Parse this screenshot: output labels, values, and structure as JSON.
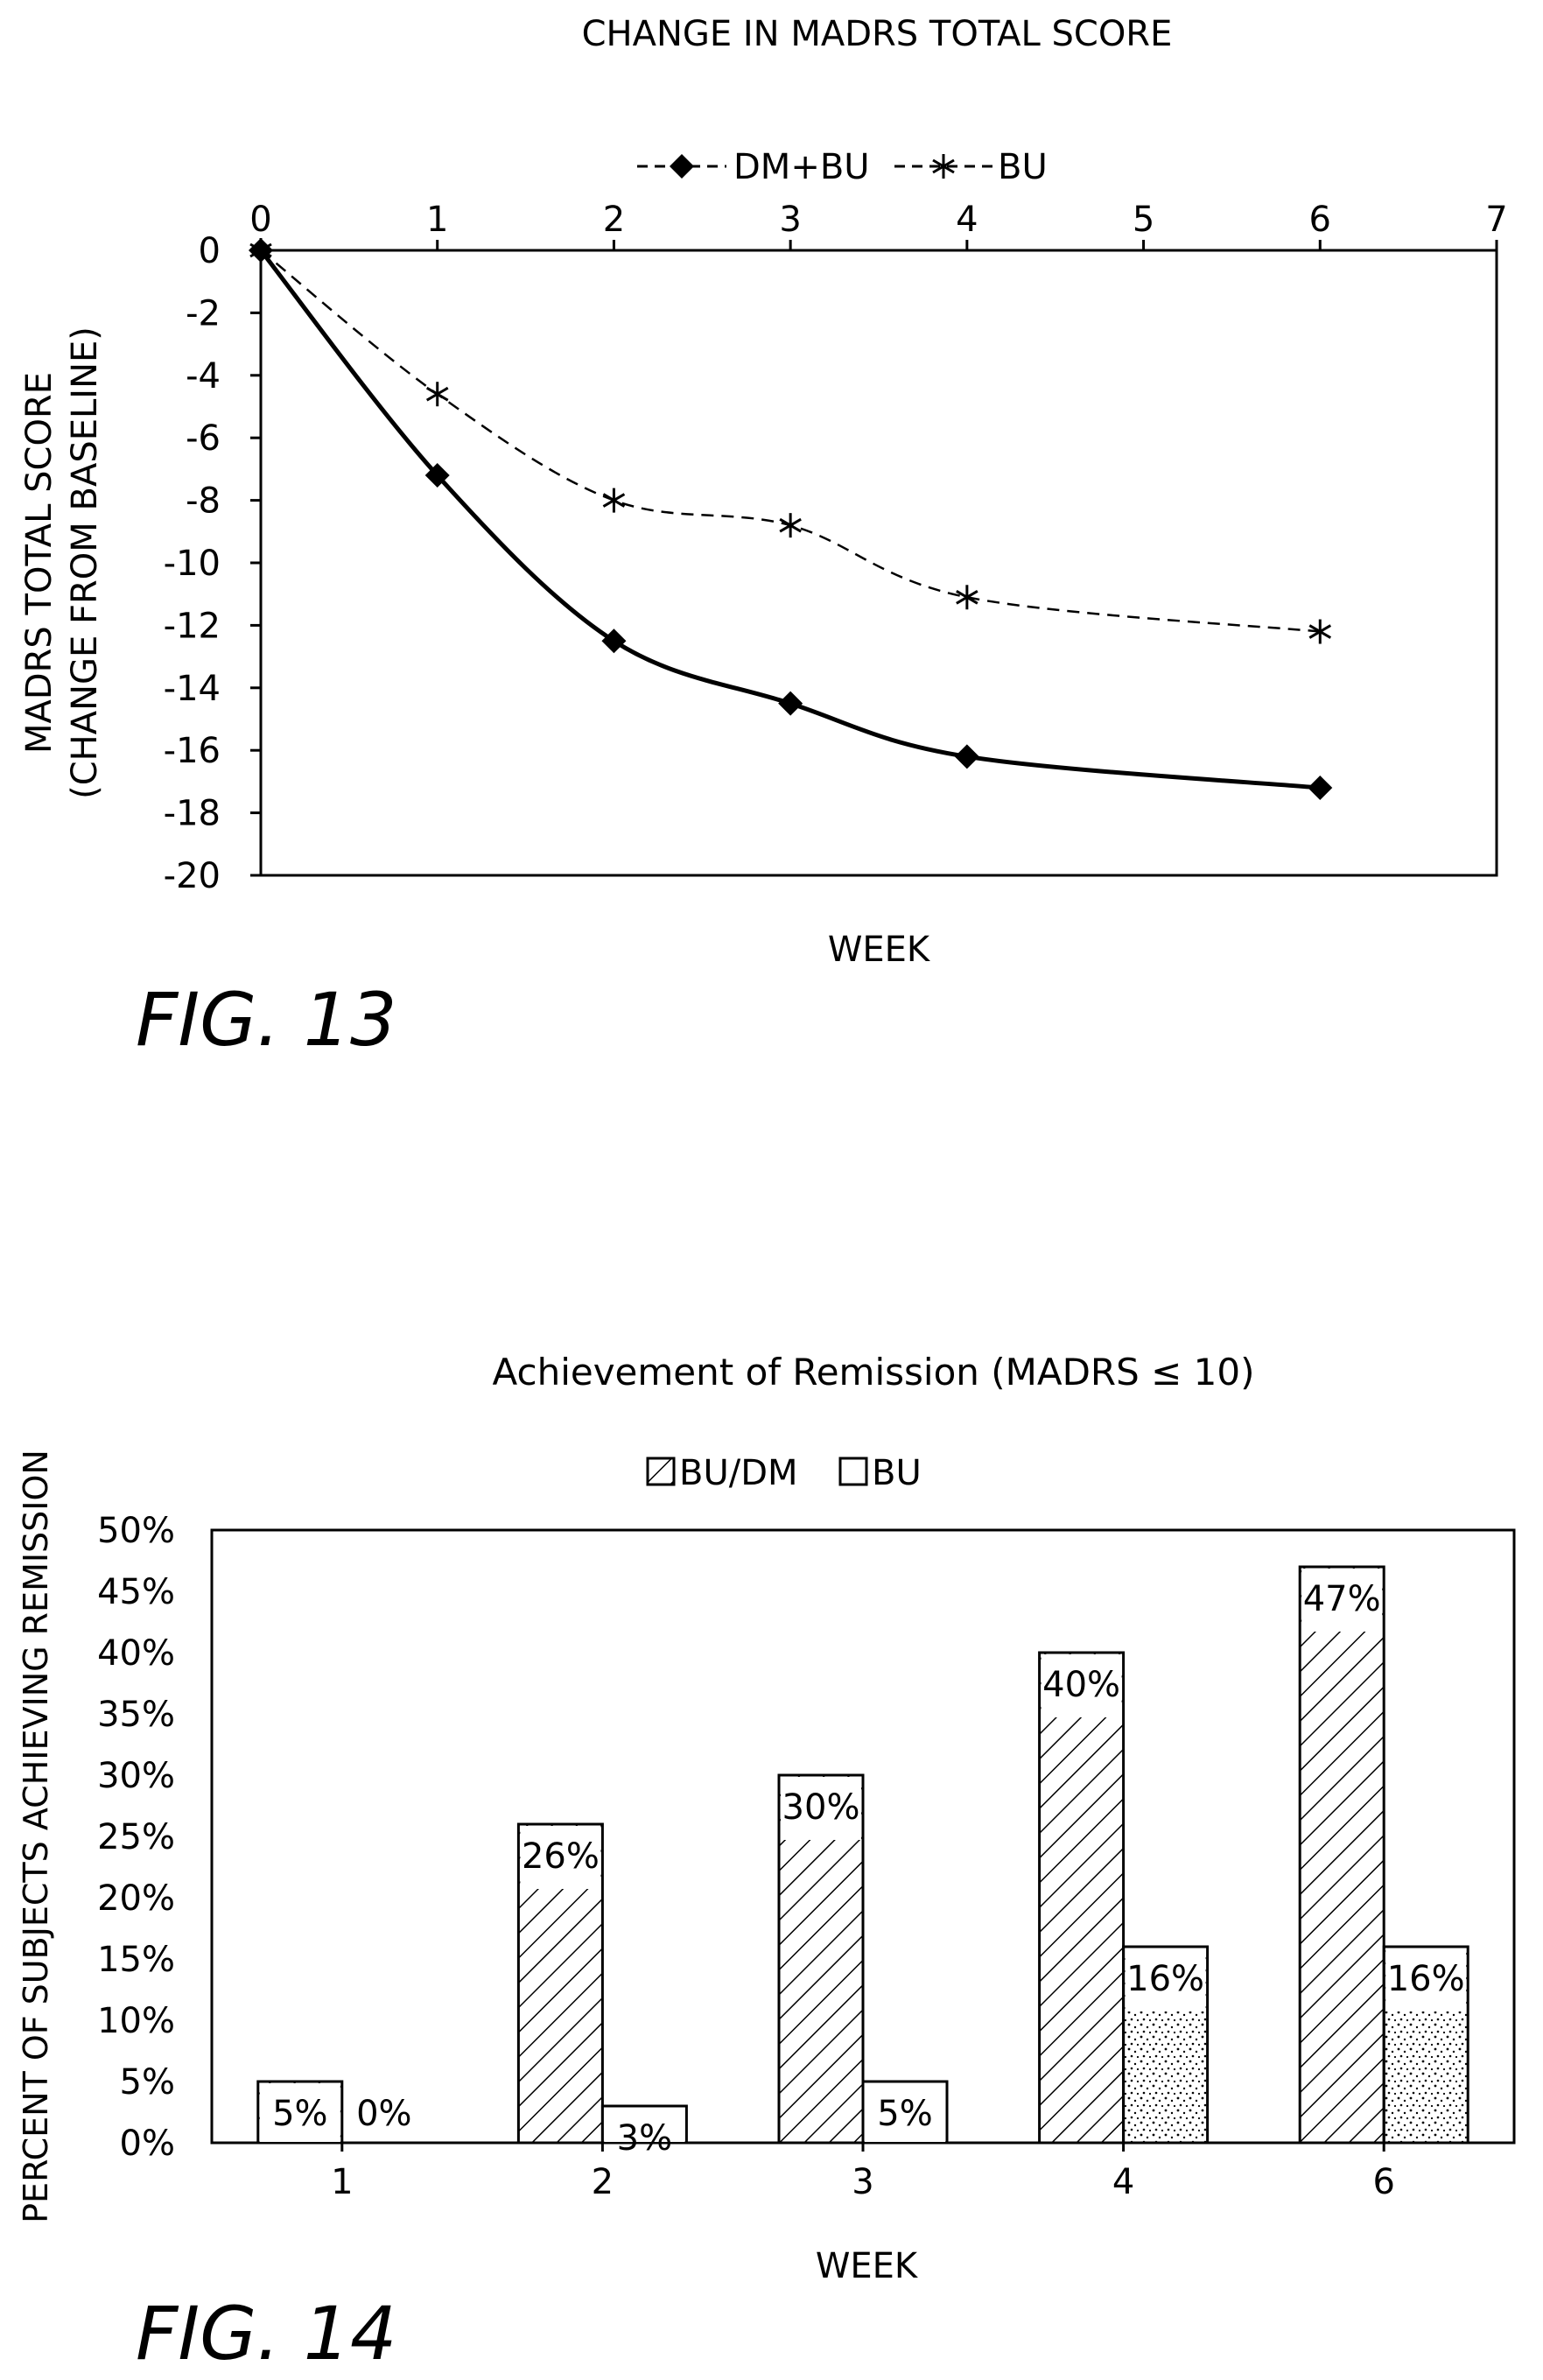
{
  "figure13": {
    "fig_label": "FIG. 13",
    "chart_data": {
      "type": "line",
      "title": "CHANGE IN MADRS TOTAL SCORE",
      "xlabel": "WEEK",
      "ylabel_line1": "MADRS TOTAL SCORE",
      "ylabel_line2": "(CHANGE FROM BASELINE)",
      "xlim": [
        0,
        7
      ],
      "ylim": [
        -20,
        0
      ],
      "x_ticks": [
        "0",
        "1",
        "2",
        "3",
        "4",
        "5",
        "6",
        "7"
      ],
      "y_ticks": [
        "0",
        "-2",
        "-4",
        "-6",
        "-8",
        "-10",
        "-12",
        "-14",
        "-16",
        "-18",
        "-20"
      ],
      "x_axis_position": "top",
      "grid": false,
      "legend_position": "top-center",
      "series": [
        {
          "name": "DM+BU",
          "marker": "diamond",
          "line": "solid",
          "x": [
            0,
            1,
            2,
            3,
            4,
            6
          ],
          "y": [
            0,
            -7.2,
            -12.5,
            -14.5,
            -16.2,
            -17.2
          ]
        },
        {
          "name": "BU",
          "marker": "asterisk",
          "line": "dashed",
          "x": [
            0,
            1,
            2,
            3,
            4,
            6
          ],
          "y": [
            0,
            -4.6,
            -8.0,
            -8.8,
            -11.1,
            -12.2
          ]
        }
      ]
    }
  },
  "figure14": {
    "fig_label": "FIG. 14",
    "chart_data": {
      "type": "bar",
      "title": "Achievement of Remission (MADRS ≤ 10)",
      "xlabel": "WEEK",
      "ylabel": "PERCENT OF SUBJECTS ACHIEVING REMISSION",
      "categories": [
        "1",
        "2",
        "3",
        "4",
        "6"
      ],
      "ylim": [
        0,
        50
      ],
      "y_ticks": [
        "0%",
        "5%",
        "10%",
        "15%",
        "20%",
        "25%",
        "30%",
        "35%",
        "40%",
        "45%",
        "50%"
      ],
      "grid": false,
      "legend_position": "top-center",
      "series": [
        {
          "name": "BU/DM",
          "values": [
            5,
            26,
            30,
            40,
            47
          ],
          "labels": [
            "5%",
            "26%",
            "30%",
            "40%",
            "47%"
          ]
        },
        {
          "name": "BU",
          "values": [
            0,
            3,
            5,
            16,
            16
          ],
          "labels": [
            "0%",
            "3%",
            "5%",
            "16%",
            "16%"
          ]
        }
      ]
    }
  }
}
